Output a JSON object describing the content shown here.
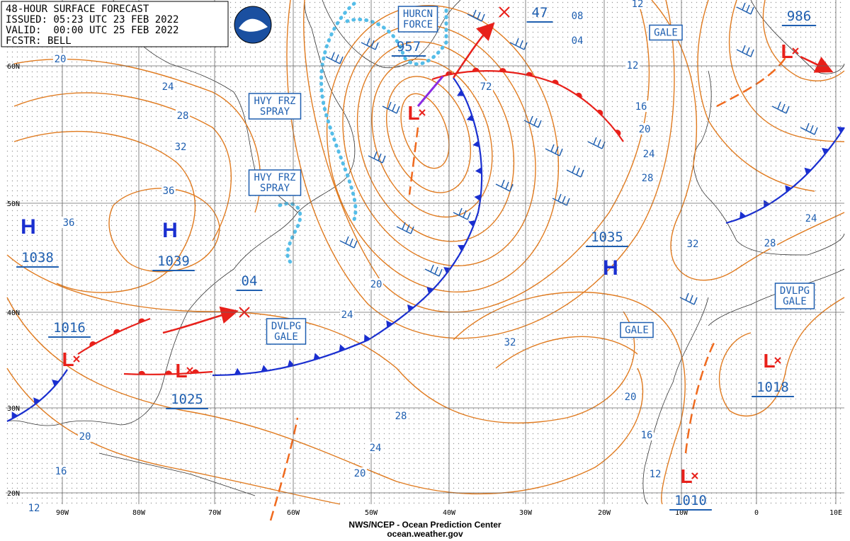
{
  "header": {
    "lines": [
      "48-HOUR SURFACE FORECAST",
      "ISSUED: 05:23 UTC 23 FEB 2022",
      "VALID:  00:00 UTC 25 FEB 2022",
      "FCSTR: BELL"
    ]
  },
  "footer": {
    "lines": [
      "NWS/NCEP - Ocean Prediction Center",
      "ocean.weather.gov"
    ]
  },
  "latitude_labels": [
    "60N",
    "50N",
    "40N",
    "30N",
    "20N"
  ],
  "longitude_labels": [
    "90W",
    "80W",
    "70W",
    "60W",
    "50W",
    "40W",
    "30W",
    "20W",
    "10W",
    "0",
    "10E"
  ],
  "boxes": [
    {
      "lines": [
        "HURCN",
        "FORCE"
      ]
    },
    {
      "lines": [
        "GALE"
      ]
    },
    {
      "lines": [
        "HVY FRZ",
        "SPRAY"
      ]
    },
    {
      "lines": [
        "HVY FRZ",
        "SPRAY"
      ]
    },
    {
      "lines": [
        "DVLPG",
        "GALE"
      ]
    },
    {
      "lines": [
        "GALE"
      ]
    },
    {
      "lines": [
        "DVLPG",
        "GALE"
      ]
    }
  ],
  "highs": [
    {
      "symbol": "H",
      "pressure": "1038"
    },
    {
      "symbol": "H",
      "pressure": "1039"
    },
    {
      "symbol": "H",
      "pressure": "1035"
    }
  ],
  "lows": [
    {
      "symbol": "L",
      "pressure": "1016"
    },
    {
      "symbol": "L",
      "pressure": "1025"
    },
    {
      "symbol": "L",
      "pressure": "957"
    },
    {
      "symbol": "L",
      "pressure": "986"
    },
    {
      "symbol": "L",
      "pressure": "1018"
    },
    {
      "symbol": "L",
      "pressure": "1010"
    }
  ],
  "other_pressures": [
    "04",
    "47"
  ],
  "isobar_labels": [
    "20",
    "24",
    "28",
    "32",
    "36",
    "36",
    "12",
    "08",
    "04",
    "12",
    "16",
    "20",
    "24",
    "28",
    "72",
    "32",
    "28",
    "24",
    "20",
    "24",
    "32",
    "28",
    "24",
    "20",
    "20",
    "16",
    "12",
    "20",
    "16",
    "12"
  ]
}
